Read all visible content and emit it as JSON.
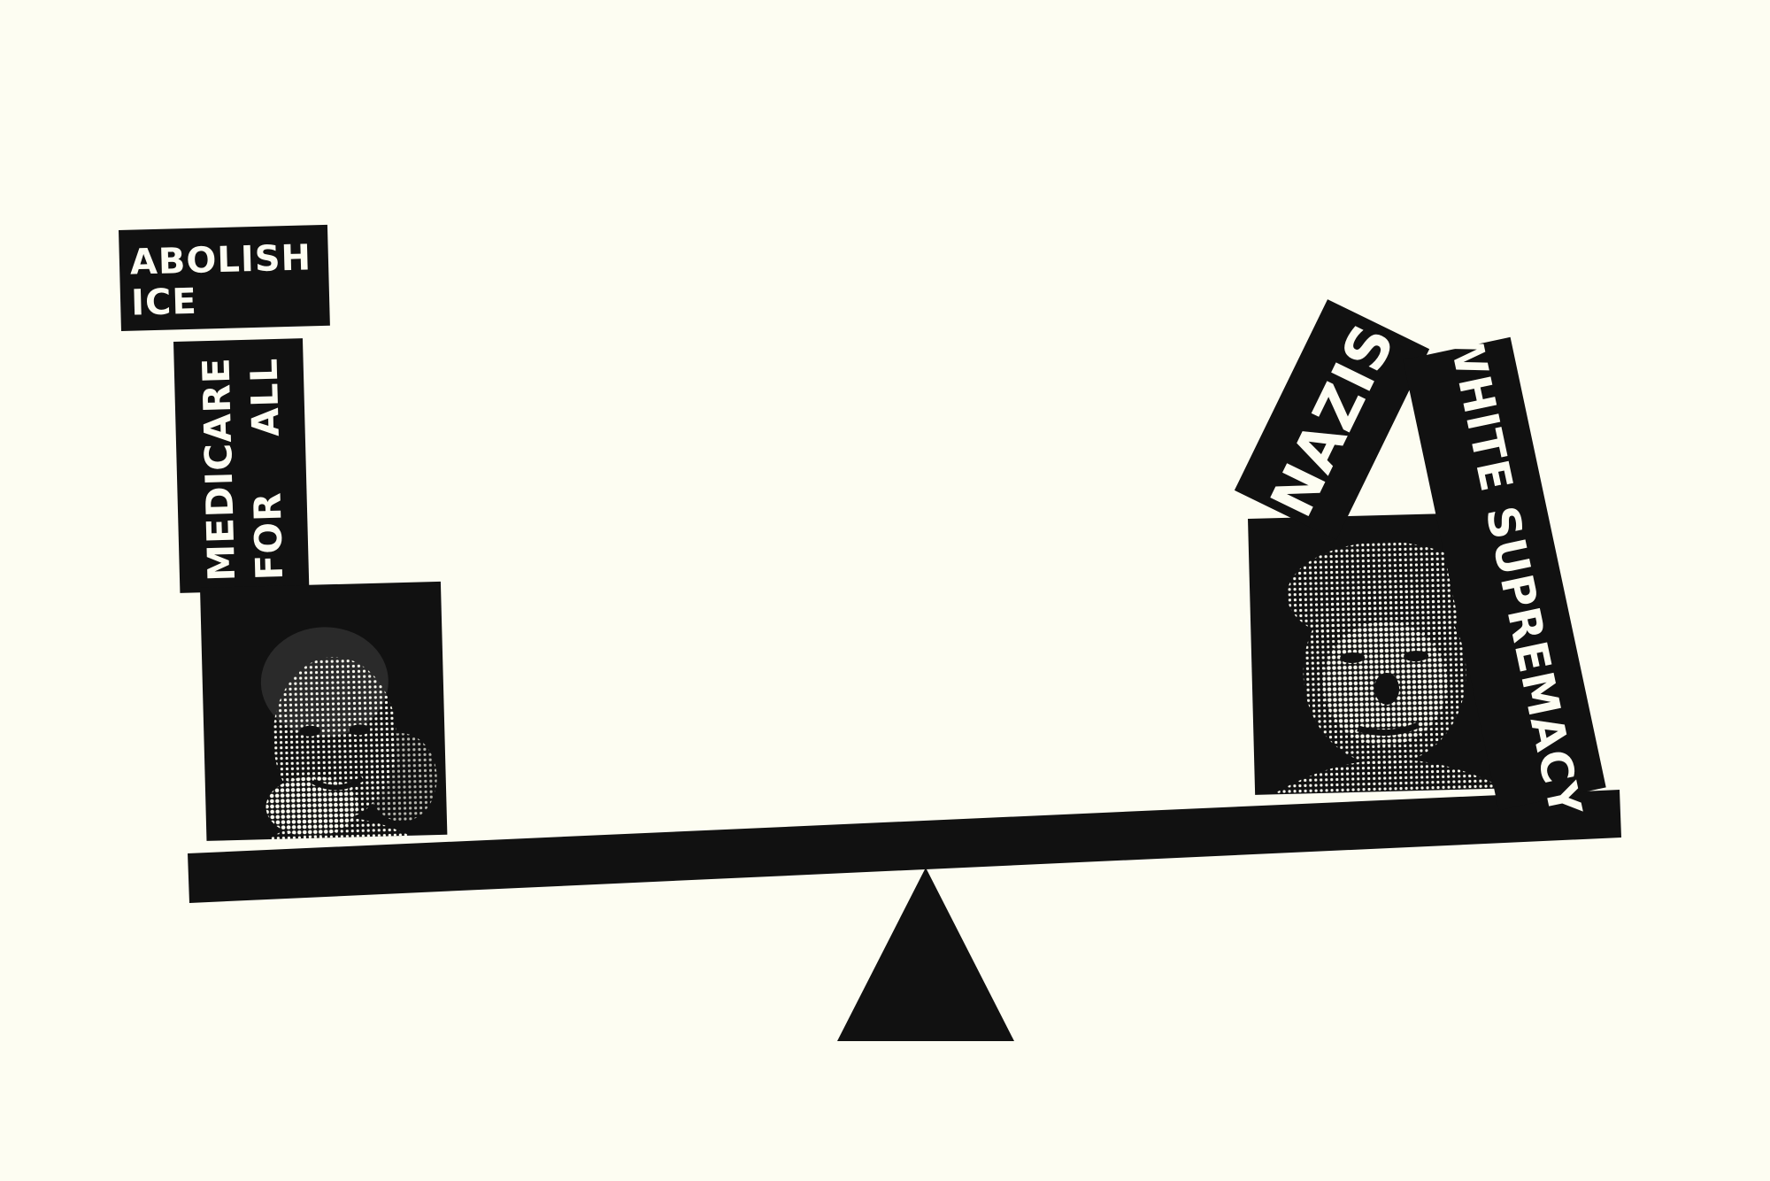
{
  "colors": {
    "background": "#fdfdf2",
    "ink": "#111111",
    "paper": "#fdfdf2"
  },
  "left_side": {
    "portrait": {
      "icon": "woman-portrait-halftone"
    },
    "labels": [
      {
        "lines": [
          "ABOLISH",
          "ICE"
        ]
      },
      {
        "lines": [
          "MEDICARE",
          "FOR    ALL"
        ]
      }
    ]
  },
  "right_side": {
    "portrait": {
      "icon": "man-portrait-halftone"
    },
    "labels": [
      {
        "lines": [
          "NAZIS"
        ]
      },
      {
        "lines": [
          "WHITE SUPREMACY"
        ]
      }
    ]
  },
  "seesaw": {
    "icon": "seesaw-fulcrum"
  }
}
